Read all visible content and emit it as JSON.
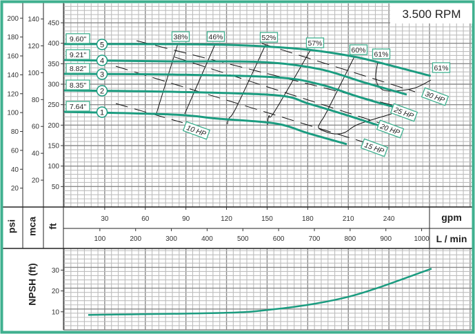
{
  "chart_data": {
    "type": "line",
    "title": "3.500 RPM",
    "colors": {
      "curve": "#1b9c80",
      "border": "#3fb08f",
      "lines": "#111111"
    },
    "left_axes": [
      {
        "label": "psi",
        "ticks": [
          20,
          40,
          60,
          80,
          100,
          120,
          140,
          160,
          180,
          200
        ]
      },
      {
        "label": "mca",
        "ticks": [
          20,
          40,
          60,
          80,
          100,
          120,
          140
        ]
      },
      {
        "label": "ft",
        "ticks": [
          50,
          100,
          150,
          200,
          250,
          300,
          350,
          400,
          450
        ]
      }
    ],
    "x_axes": [
      {
        "label": "gpm",
        "ticks": [
          30,
          60,
          90,
          120,
          150,
          180,
          210,
          240
        ]
      },
      {
        "label": "L / min",
        "ticks": [
          100,
          200,
          300,
          400,
          500,
          600,
          700,
          800,
          900,
          1000
        ]
      }
    ],
    "xlim_gpm": [
      0,
      270
    ],
    "ylim_ft": [
      0,
      500
    ],
    "grid": true,
    "impeller_curves": [
      {
        "name": "7.64\"",
        "number": "1",
        "points": [
          [
            0,
            232.6
          ],
          [
            80,
            225.9
          ],
          [
            114.1,
            215.7
          ],
          [
            156.4,
            203.9
          ],
          [
            180.3,
            180.3
          ],
          [
            208.9,
            153.4
          ]
        ]
      },
      {
        "name": "8.35\"",
        "number": "2",
        "points": [
          [
            0,
            284.8
          ],
          [
            80,
            281.5
          ],
          [
            156.4,
            273
          ],
          [
            180.3,
            252.8
          ],
          [
            205.8,
            227.5
          ],
          [
            232.8,
            198.9
          ]
        ]
      },
      {
        "name": "8.82\"",
        "number": "3",
        "points": [
          [
            0,
            325.3
          ],
          [
            80,
            323.6
          ],
          [
            156.4,
            316.9
          ],
          [
            188.5,
            300
          ],
          [
            214,
            273
          ],
          [
            234.3,
            252.8
          ],
          [
            248.1,
            241
          ]
        ]
      },
      {
        "name": "9.21\"",
        "number": "4",
        "points": [
          [
            0,
            359
          ],
          [
            80,
            355.6
          ],
          [
            146,
            354
          ],
          [
            188.5,
            337
          ],
          [
            222.6,
            303.4
          ],
          [
            253.2,
            274.7
          ]
        ]
      },
      {
        "name": "9.60\"",
        "number": "5",
        "points": [
          [
            0,
            398
          ],
          [
            80,
            397.8
          ],
          [
            120.7,
            396.1
          ],
          [
            146.2,
            392.7
          ],
          [
            180.3,
            384.3
          ],
          [
            214,
            367.4
          ],
          [
            239.5,
            347.2
          ],
          [
            270.9,
            320.2
          ]
        ]
      }
    ],
    "efficiency_lines": [
      {
        "label": "38%",
        "points": [
          [
            68.3,
            229.2
          ],
          [
            84.1,
            399.5
          ]
        ]
      },
      {
        "label": "46%",
        "points": [
          [
            89.1,
            227.5
          ],
          [
            111.6,
            397.8
          ]
        ]
      },
      {
        "label": "52%",
        "points": [
          [
            120.7,
            202.3
          ],
          [
            121.7,
            215.7
          ],
          [
            127.4,
            244.4
          ],
          [
            148.8,
            396.1
          ]
        ]
      },
      {
        "label": "57%",
        "points": [
          [
            150.3,
            200.6
          ],
          [
            151.3,
            222.5
          ],
          [
            155.4,
            232.6
          ],
          [
            181.9,
            382.6
          ]
        ]
      },
      {
        "label": "60%",
        "points": [
          [
            214.5,
            367.4
          ],
          [
            194.6,
            236
          ],
          [
            189.5,
            207.3
          ],
          [
            188,
            193.8
          ],
          [
            192.1,
            185.4
          ],
          [
            199.7,
            178.7
          ],
          [
            207.3,
            182
          ],
          [
            217.5,
            202.3
          ],
          [
            242,
            227.5
          ]
        ]
      },
      {
        "label": "61%",
        "points": [
          [
            231.8,
            355.6
          ],
          [
            230.3,
            315.2
          ],
          [
            233.8,
            289.9
          ],
          [
            241.5,
            283.2
          ],
          [
            258.3,
            289.9
          ],
          [
            271,
            310.1
          ]
        ]
      }
    ],
    "efficiency_extra_label": "61%",
    "power_lines": [
      {
        "label": "10 HP",
        "points": [
          [
            38.2,
            252.8
          ],
          [
            87.6,
            206
          ]
        ]
      },
      {
        "label": "15 HP",
        "points": [
          [
            38.2,
            343.8
          ],
          [
            221.6,
            158.4
          ]
        ]
      },
      {
        "label": "20 HP",
        "points": [
          [
            81.5,
            366.5
          ],
          [
            232.8,
            205.6
          ]
        ]
      },
      {
        "label": "25 HP",
        "points": [
          [
            53.5,
            406.2
          ],
          [
            248.1,
            244.4
          ]
        ]
      },
      {
        "label": "30 HP",
        "points": [
          [
            146.2,
            399.4
          ],
          [
            259.3,
            281.5
          ]
        ]
      }
    ],
    "npsh": {
      "ylabel": "NPSH (ft)",
      "ticks": [
        10,
        20,
        30
      ],
      "points": [
        [
          17.8,
          8.5
        ],
        [
          119.2,
          9.5
        ],
        [
          155.1,
          11.2
        ],
        [
          186.4,
          14.0
        ],
        [
          211.4,
          17.4
        ],
        [
          233.8,
          21.9
        ],
        [
          271.5,
          30.7
        ]
      ]
    }
  }
}
